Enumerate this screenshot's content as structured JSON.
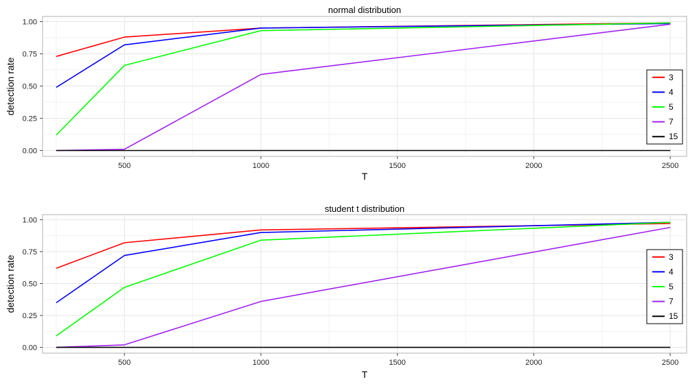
{
  "chart_data": [
    {
      "type": "line",
      "title": "normal distribution",
      "xlabel": "T",
      "ylabel": "detection rate",
      "x": [
        250,
        500,
        1000,
        2500
      ],
      "xticks": [
        500,
        1000,
        1500,
        2000,
        2500
      ],
      "yticks": [
        "0.00",
        "0.25",
        "0.50",
        "0.75",
        "1.00"
      ],
      "xlim": [
        200,
        2560
      ],
      "ylim": [
        -0.045,
        1.04
      ],
      "grid": true,
      "legend_position": "right",
      "series": [
        {
          "name": "3",
          "color": "#ff0000",
          "values": [
            0.73,
            0.88,
            0.95,
            0.99
          ]
        },
        {
          "name": "4",
          "color": "#0000ff",
          "values": [
            0.49,
            0.82,
            0.95,
            0.985
          ]
        },
        {
          "name": "5",
          "color": "#00ff00",
          "values": [
            0.12,
            0.66,
            0.93,
            0.99
          ]
        },
        {
          "name": "7",
          "color": "#a020f0",
          "values": [
            0.0,
            0.01,
            0.59,
            0.98
          ]
        },
        {
          "name": "15",
          "color": "#000000",
          "values": [
            0.0,
            0.0,
            0.0,
            0.0
          ]
        }
      ]
    },
    {
      "type": "line",
      "title": "student t distribution",
      "xlabel": "T",
      "ylabel": "detection rate",
      "x": [
        250,
        500,
        1000,
        2500
      ],
      "xticks": [
        500,
        1000,
        1500,
        2000,
        2500
      ],
      "yticks": [
        "0.00",
        "0.25",
        "0.50",
        "0.75",
        "1.00"
      ],
      "xlim": [
        200,
        2560
      ],
      "ylim": [
        -0.045,
        1.04
      ],
      "grid": true,
      "legend_position": "right",
      "series": [
        {
          "name": "3",
          "color": "#ff0000",
          "values": [
            0.62,
            0.82,
            0.92,
            0.97
          ]
        },
        {
          "name": "4",
          "color": "#0000ff",
          "values": [
            0.35,
            0.72,
            0.9,
            0.98
          ]
        },
        {
          "name": "5",
          "color": "#00ff00",
          "values": [
            0.09,
            0.47,
            0.84,
            0.98
          ]
        },
        {
          "name": "7",
          "color": "#a020f0",
          "values": [
            0.0,
            0.02,
            0.36,
            0.94
          ]
        },
        {
          "name": "15",
          "color": "#000000",
          "values": [
            0.0,
            0.0,
            0.0,
            0.0
          ]
        }
      ]
    }
  ]
}
